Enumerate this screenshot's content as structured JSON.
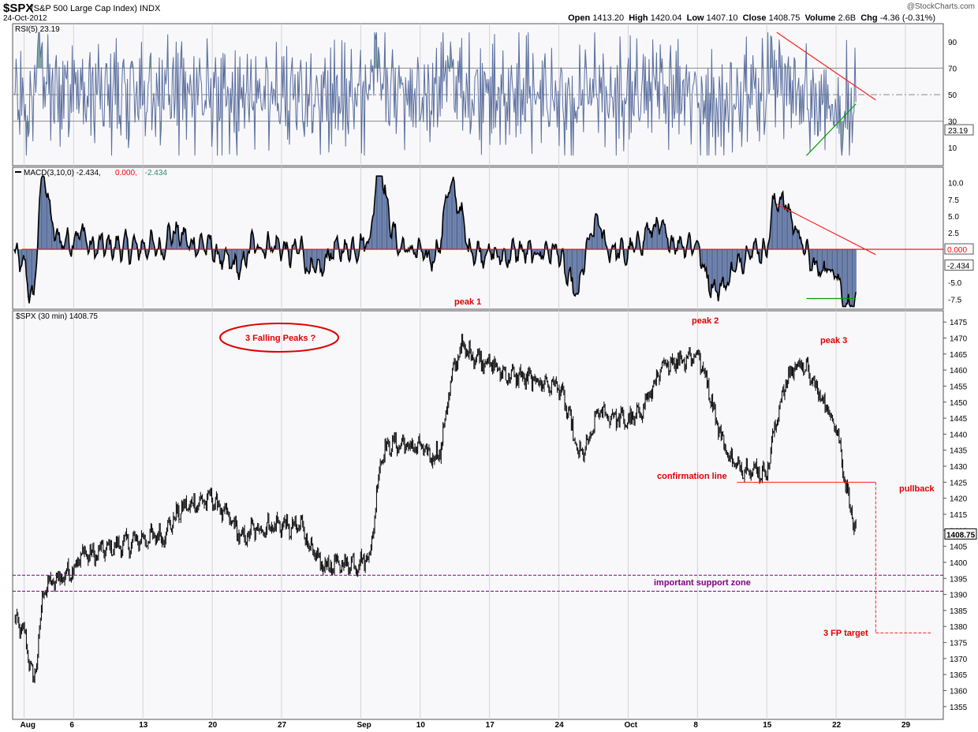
{
  "header": {
    "symbol": "$SPX",
    "name": "(S&P 500 Large Cap Index) INDX",
    "date": "24-Oct-2012",
    "brand": "@StockCharts.com",
    "ohlc": [
      {
        "label": "Open",
        "value": "1413.20"
      },
      {
        "label": "High",
        "value": "1420.04"
      },
      {
        "label": "Low",
        "value": "1407.10"
      },
      {
        "label": "Close",
        "value": "1408.75"
      },
      {
        "label": "Volume",
        "value": "2.6B"
      },
      {
        "label": "Chg",
        "value": "-4.36 (-0.31%)"
      }
    ]
  },
  "colors": {
    "price": "#000000",
    "rsi_line": "#5a6e9e",
    "rsi_fill": "#7fa7a0",
    "macd_hist": "#4a6294",
    "zero_line": "#ff0000",
    "annotation": "#e00000",
    "support": "#800080",
    "trend_green": "#00a000",
    "grid": "#d4d4d4",
    "panel_bg": "#f8f8fb"
  },
  "chart_data": [
    {
      "type": "line",
      "panel": "rsi",
      "title": "RSI(5) 23.19",
      "ylim": [
        0,
        100
      ],
      "yticks": [
        10,
        30,
        50,
        70,
        90
      ],
      "levels": [
        30,
        50,
        70
      ],
      "last_value": "23.19",
      "segments": [
        {
          "name": "rsi_trend_upper",
          "color": "red",
          "from": {
            "x": "2012-10-16",
            "y": 97
          },
          "to": {
            "x": "2012-10-26",
            "y": 46
          }
        },
        {
          "name": "rsi_trend_lower",
          "color": "green",
          "from": {
            "x": "2012-10-19",
            "y": 4
          },
          "to": {
            "x": "2012-10-24",
            "y": 43
          }
        }
      ]
    },
    {
      "type": "bar",
      "panel": "macd",
      "title": "MACD(3,10,0) -2.434, 0.000, -2.434",
      "legend": [
        {
          "text": "MACD(3,10,0) -2.434,",
          "color": "#000000"
        },
        {
          "text": "0.000,",
          "color": "#ff0000"
        },
        {
          "text": "-2.434",
          "color": "#2f8a6a"
        }
      ],
      "ylim": [
        -9,
        11.5
      ],
      "yticks": [
        -7.5,
        -5.0,
        -2.5,
        0.0,
        2.5,
        5.0,
        7.5,
        10.0
      ],
      "ytick_labels": [
        "-7.5",
        "-5.0",
        "-2.5",
        "0.000",
        "2.5",
        "5.0",
        "7.5",
        "10.0"
      ],
      "last_values": [
        "0.000",
        "-2.434"
      ],
      "segments": [
        {
          "name": "macd_trend_upper",
          "color": "red",
          "from": {
            "x": "2012-10-16",
            "y": 6.8
          },
          "to": {
            "x": "2012-10-26",
            "y": -0.8
          }
        },
        {
          "name": "macd_trend_lower",
          "color": "green",
          "from": {
            "x": "2012-10-19",
            "y": -7.4
          },
          "to": {
            "x": "2012-10-24",
            "y": -7.4
          }
        }
      ]
    },
    {
      "type": "line",
      "panel": "price",
      "title": "$SPX (30 min) 1408.75",
      "ylim": [
        1352.5,
        1478
      ],
      "yticks": [
        1355,
        1360,
        1365,
        1370,
        1375,
        1380,
        1385,
        1390,
        1395,
        1400,
        1405,
        1410,
        1415,
        1420,
        1425,
        1430,
        1435,
        1440,
        1445,
        1450,
        1455,
        1460,
        1465,
        1470,
        1475
      ],
      "last_value": "1408.75",
      "x_range": [
        "2012-07-31",
        "2012-10-29"
      ],
      "xticks": [
        {
          "label": "Aug",
          "x": "2012-08-01"
        },
        {
          "label": "6",
          "x": "2012-08-06"
        },
        {
          "label": "13",
          "x": "2012-08-13"
        },
        {
          "label": "20",
          "x": "2012-08-20"
        },
        {
          "label": "27",
          "x": "2012-08-27"
        },
        {
          "label": "Sep",
          "x": "2012-09-04"
        },
        {
          "label": "10",
          "x": "2012-09-10"
        },
        {
          "label": "17",
          "x": "2012-09-17"
        },
        {
          "label": "24",
          "x": "2012-09-24"
        },
        {
          "label": "Oct",
          "x": "2012-10-01"
        },
        {
          "label": "8",
          "x": "2012-10-08"
        },
        {
          "label": "15",
          "x": "2012-10-15"
        },
        {
          "label": "22",
          "x": "2012-10-22"
        },
        {
          "label": "29",
          "x": "2012-10-29"
        }
      ],
      "x": [
        "2012-07-31",
        "2012-08-01",
        "2012-08-02",
        "2012-08-03",
        "2012-08-06",
        "2012-08-07",
        "2012-08-08",
        "2012-08-09",
        "2012-08-10",
        "2012-08-13",
        "2012-08-14",
        "2012-08-15",
        "2012-08-16",
        "2012-08-17",
        "2012-08-20",
        "2012-08-21",
        "2012-08-22",
        "2012-08-23",
        "2012-08-24",
        "2012-08-27",
        "2012-08-28",
        "2012-08-29",
        "2012-08-30",
        "2012-08-31",
        "2012-09-04",
        "2012-09-05",
        "2012-09-06",
        "2012-09-07",
        "2012-09-10",
        "2012-09-11",
        "2012-09-12",
        "2012-09-13",
        "2012-09-14",
        "2012-09-17",
        "2012-09-18",
        "2012-09-19",
        "2012-09-20",
        "2012-09-21",
        "2012-09-24",
        "2012-09-25",
        "2012-09-26",
        "2012-09-27",
        "2012-09-28",
        "2012-10-01",
        "2012-10-02",
        "2012-10-03",
        "2012-10-04",
        "2012-10-05",
        "2012-10-08",
        "2012-10-09",
        "2012-10-10",
        "2012-10-11",
        "2012-10-12",
        "2012-10-15",
        "2012-10-16",
        "2012-10-17",
        "2012-10-18",
        "2012-10-19",
        "2012-10-22",
        "2012-10-23",
        "2012-10-24"
      ],
      "y": [
        1382,
        1378,
        1362,
        1392,
        1398,
        1403,
        1402,
        1404,
        1405,
        1407,
        1408,
        1408,
        1413,
        1417,
        1420,
        1416,
        1413,
        1407,
        1410,
        1412,
        1410,
        1412,
        1404,
        1399,
        1400,
        1403,
        1433,
        1437,
        1436,
        1433,
        1434,
        1455,
        1467,
        1462,
        1460,
        1458,
        1458,
        1457,
        1455,
        1446,
        1433,
        1437,
        1447,
        1444,
        1446,
        1451,
        1458,
        1462,
        1465,
        1456,
        1443,
        1434,
        1430,
        1428,
        1445,
        1457,
        1462,
        1460,
        1443,
        1424,
        1408.75
      ],
      "annotations": [
        {
          "text": "3 Falling Peaks  ?",
          "x": "2012-08-22",
          "y": 1468,
          "style": "ellipse"
        },
        {
          "text": "peak 1",
          "x": "2012-09-14",
          "panel": "macd"
        },
        {
          "text": "peak 2",
          "x": "2012-10-08",
          "y": 1474
        },
        {
          "text": "peak 3",
          "x": "2012-10-22",
          "y": 1466
        },
        {
          "text": "confirmation line",
          "x": "2012-10-11",
          "y": 1425
        },
        {
          "text": "pullback",
          "x": "2012-10-29",
          "y": 1419
        },
        {
          "text": "important support zone",
          "x": "2012-10-08",
          "y": 1393
        },
        {
          "text": "3 FP target",
          "x": "2012-10-25",
          "y": 1377
        }
      ],
      "hlines": [
        {
          "name": "confirmation",
          "y": 1425,
          "from": "2012-10-12",
          "to": "2012-10-26",
          "style": "solid",
          "color": "red"
        },
        {
          "name": "support_upper",
          "y": 1396,
          "style": "dashed",
          "color": "purple"
        },
        {
          "name": "support_lower",
          "y": 1391,
          "style": "dashed",
          "color": "purple"
        },
        {
          "name": "target",
          "y": 1378,
          "from": "2012-10-26",
          "to": "2012-10-29",
          "style": "dashed",
          "color": "red"
        }
      ],
      "vlines": [
        {
          "name": "projection",
          "x": "2012-10-26",
          "from": 1425,
          "to": 1378,
          "style": "dashed",
          "color": "red"
        }
      ]
    }
  ]
}
